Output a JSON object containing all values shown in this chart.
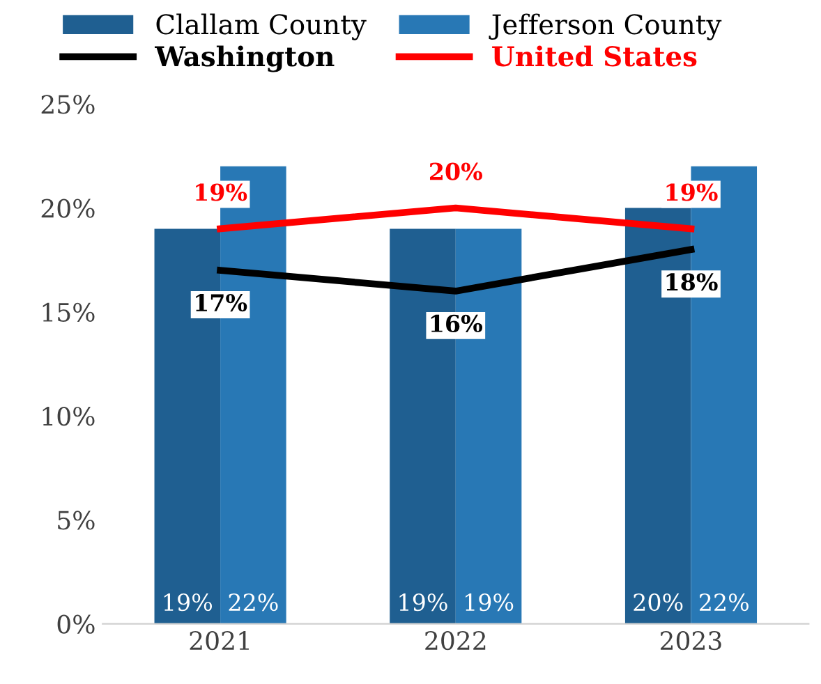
{
  "chart_data": {
    "type": "bar",
    "categories": [
      "2021",
      "2022",
      "2023"
    ],
    "series": [
      {
        "name": "Clallam County",
        "color": "#1f5f91",
        "values": [
          19,
          19,
          20
        ],
        "value_labels": [
          "19%",
          "19%",
          "20%"
        ]
      },
      {
        "name": "Jefferson County",
        "color": "#2878b5",
        "values": [
          22,
          19,
          22
        ],
        "value_labels": [
          "22%",
          "19%",
          "22%"
        ]
      },
      {
        "name": "Washington",
        "type": "line",
        "color": "#000000",
        "values": [
          17,
          16,
          18
        ],
        "value_labels": [
          "17%",
          "16%",
          "18%"
        ]
      },
      {
        "name": "United States",
        "type": "line",
        "color": "#ff0000",
        "values": [
          19,
          20,
          19
        ],
        "value_labels": [
          "19%",
          "20%",
          "19%"
        ]
      }
    ],
    "ylim": [
      0,
      25
    ],
    "yticks": [
      {
        "value": 0,
        "label": "0%"
      },
      {
        "value": 5,
        "label": "5%"
      },
      {
        "value": 10,
        "label": "10%"
      },
      {
        "value": 15,
        "label": "15%"
      },
      {
        "value": 20,
        "label": "20%"
      },
      {
        "value": 25,
        "label": "25%"
      }
    ],
    "grid": false,
    "legend": "top",
    "marker": "none"
  }
}
